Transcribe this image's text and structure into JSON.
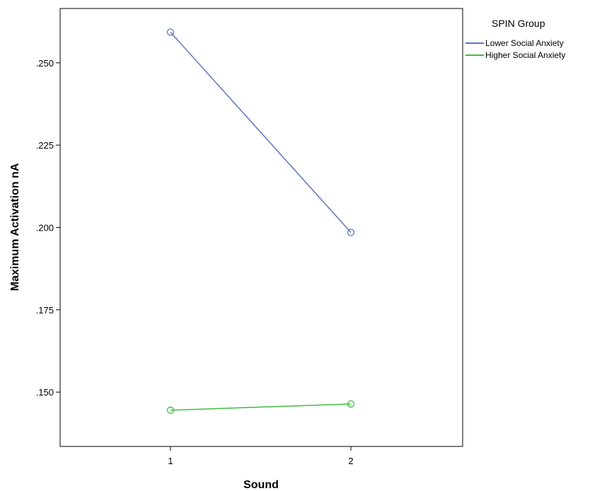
{
  "chart_data": {
    "type": "line",
    "xlabel": "Sound",
    "ylabel": "Maximum Activation nA",
    "categories": [
      "1",
      "2"
    ],
    "ylim": [
      0.1335,
      0.2665
    ],
    "yticks": [
      0.15,
      0.175,
      0.2,
      0.225,
      0.25
    ],
    "ytick_labels": [
      ".150",
      ".175",
      ".200",
      ".225",
      ".250"
    ],
    "grid": false,
    "legend": {
      "title": "SPIN Group",
      "placement": "right"
    },
    "series": [
      {
        "name": "Lower Social Anxiety",
        "color": "#6074c0",
        "marker": "circle",
        "values": [
          0.2593,
          0.1985
        ]
      },
      {
        "name": "Higher Social Anxiety",
        "color": "#3fbf3f",
        "marker": "circle",
        "values": [
          0.1445,
          0.1464
        ]
      }
    ]
  }
}
